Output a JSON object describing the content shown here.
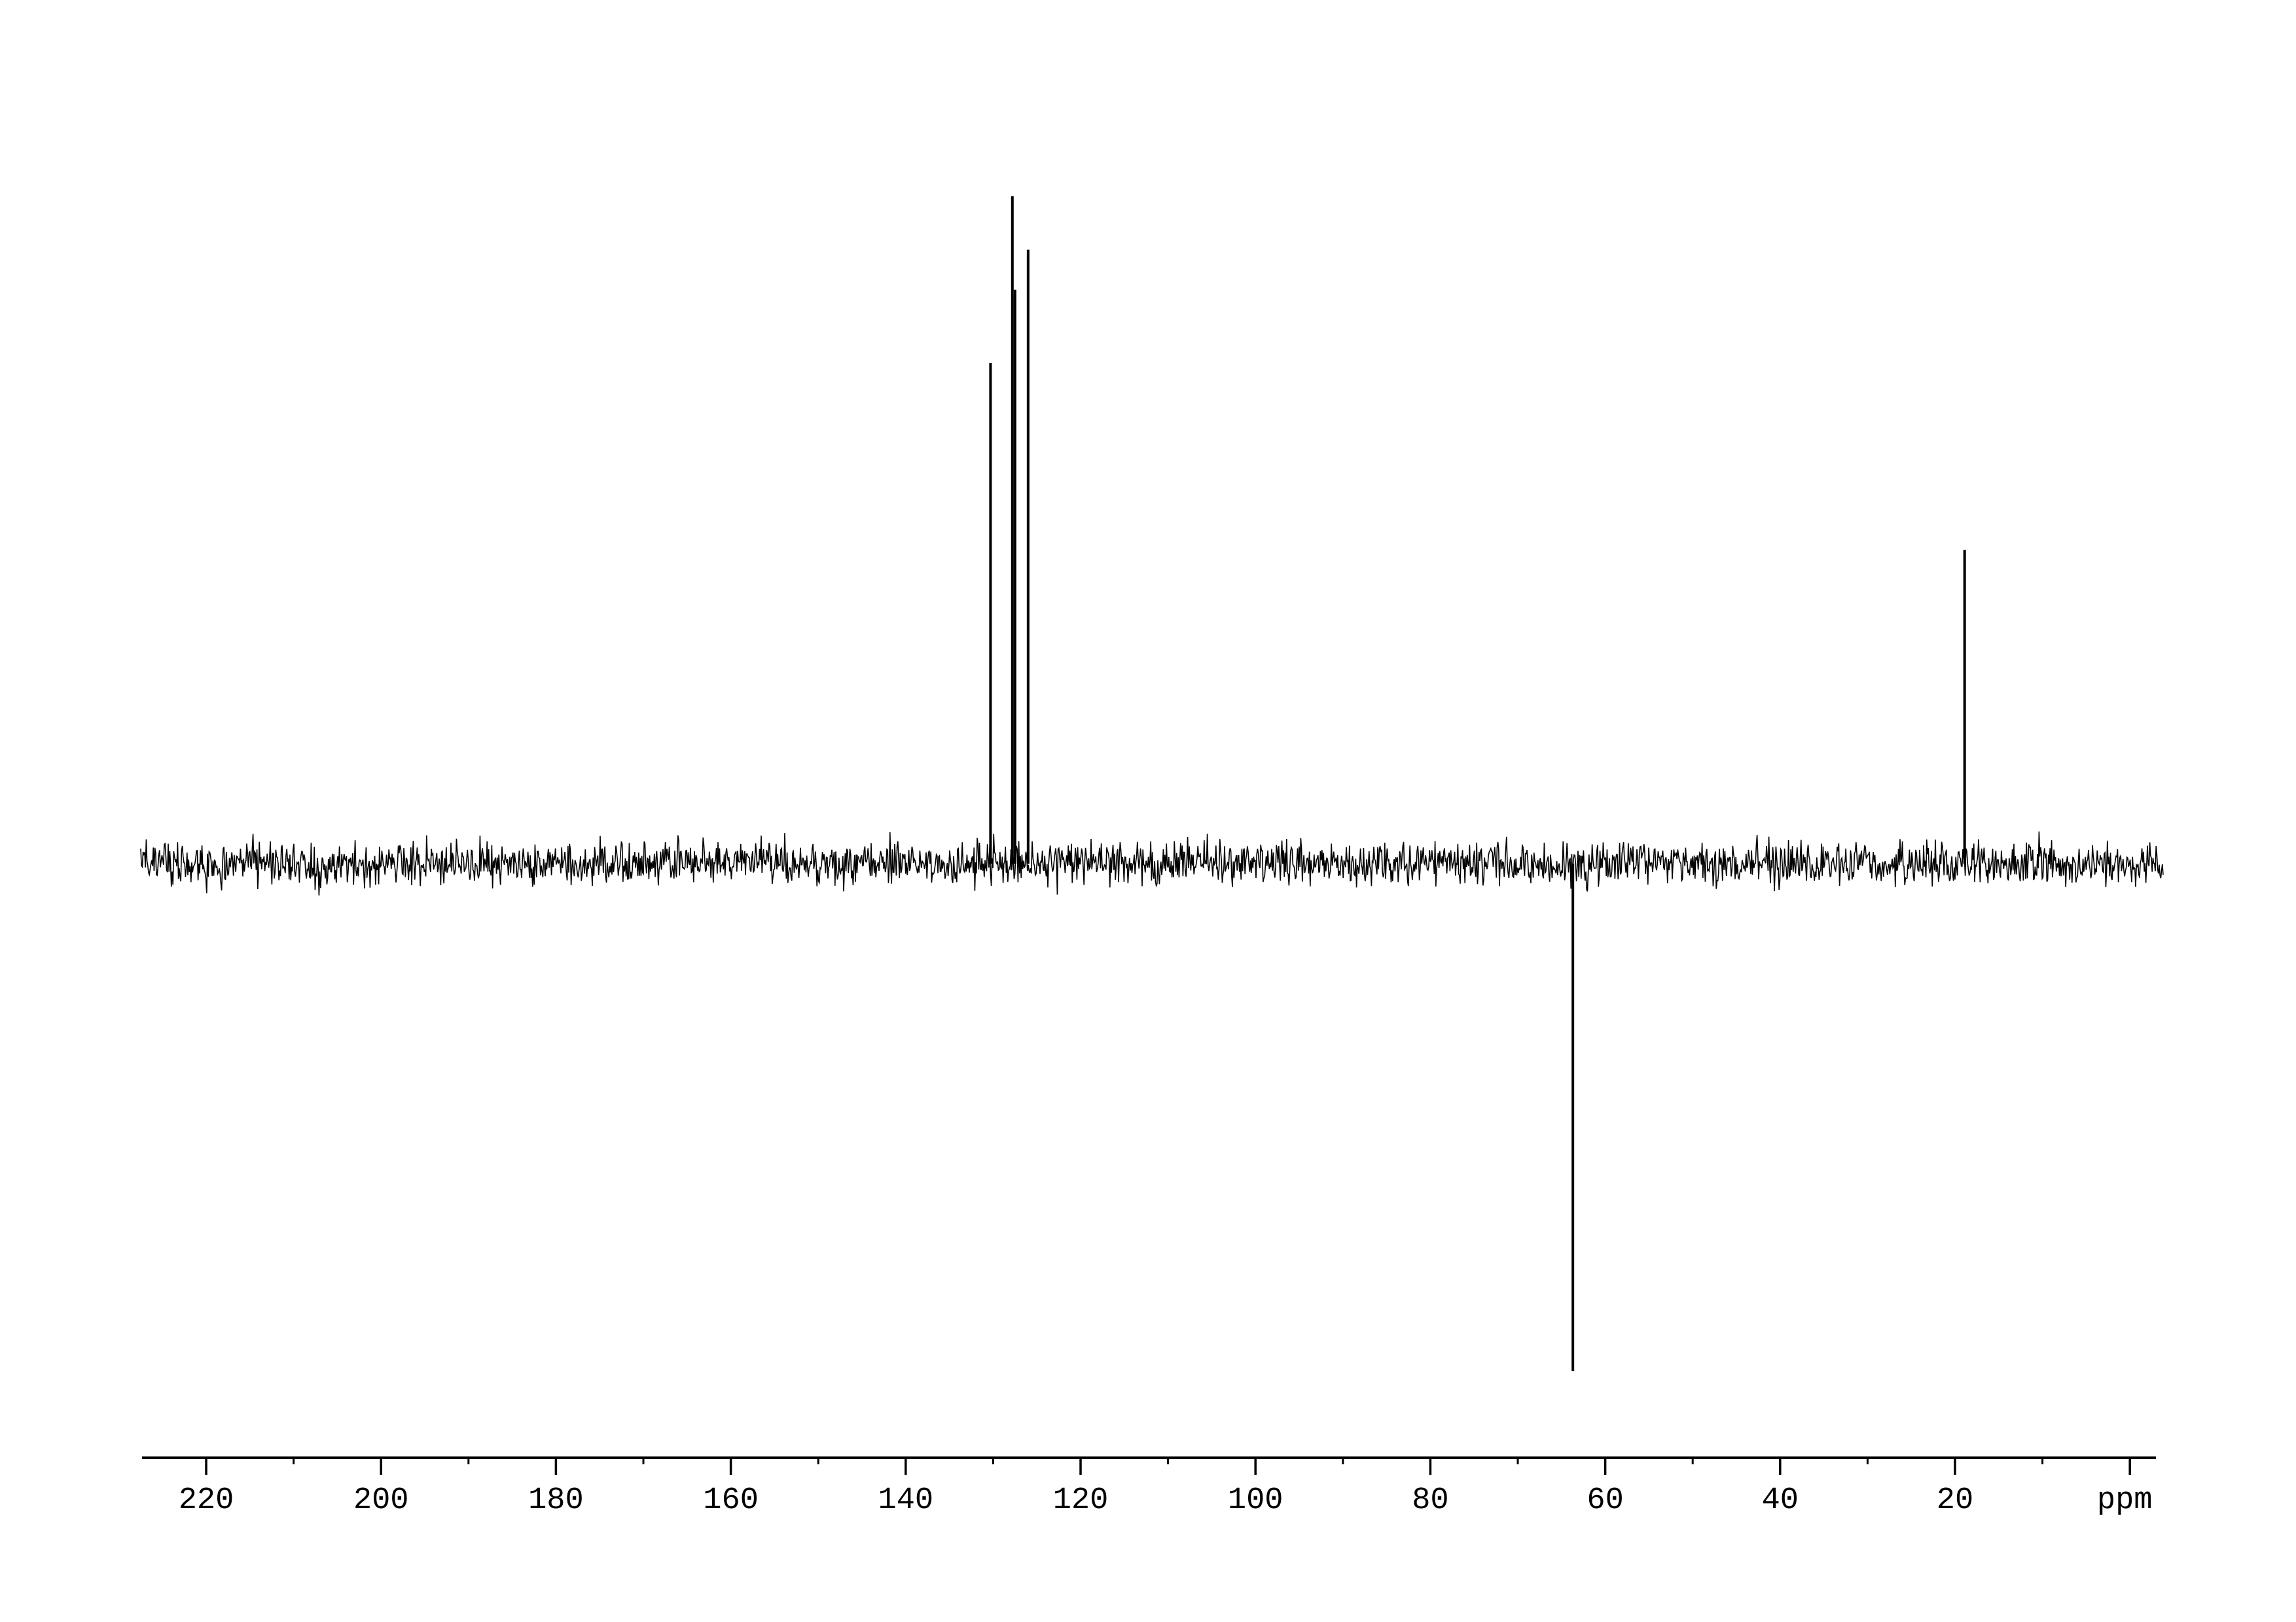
{
  "page": {
    "background_color": "#ffffff",
    "description": "13C DEPT NMR spectrum plot, black trace on white background, no title"
  },
  "chart_data": {
    "type": "line",
    "subtype": "13C DEPT-135 NMR spectrum",
    "title": "",
    "xlabel": "ppm",
    "ylabel": "",
    "x_unit": "ppm",
    "xlim": [
      227.5,
      -3.8
    ],
    "x_axis_reversed": true,
    "grid": false,
    "legend": false,
    "line_color": "#000000",
    "background_color": "#ffffff",
    "axis_ticks_major": [
      220,
      200,
      180,
      160,
      140,
      120,
      100,
      80,
      60,
      40,
      20
    ],
    "axis_ticks_minor": [
      210,
      190,
      170,
      150,
      130,
      110,
      90,
      70,
      50,
      30,
      10
    ],
    "axis_unit_label": "ppm",
    "axis_unit_label_position_ppm": 0,
    "peaks": [
      {
        "ppm": 130.3,
        "rel_intensity": 0.75,
        "phase": "up"
      },
      {
        "ppm": 127.8,
        "rel_intensity": 1.0,
        "phase": "up"
      },
      {
        "ppm": 127.5,
        "rel_intensity": 0.86,
        "phase": "up"
      },
      {
        "ppm": 126.0,
        "rel_intensity": 0.92,
        "phase": "up"
      },
      {
        "ppm": 63.7,
        "rel_intensity": -0.76,
        "phase": "down"
      },
      {
        "ppm": 18.9,
        "rel_intensity": 0.47,
        "phase": "up"
      }
    ],
    "noise": {
      "visible": true,
      "rel_core_amplitude": 0.04,
      "rel_max_spike": 0.056,
      "spans_full_axis": true
    }
  }
}
